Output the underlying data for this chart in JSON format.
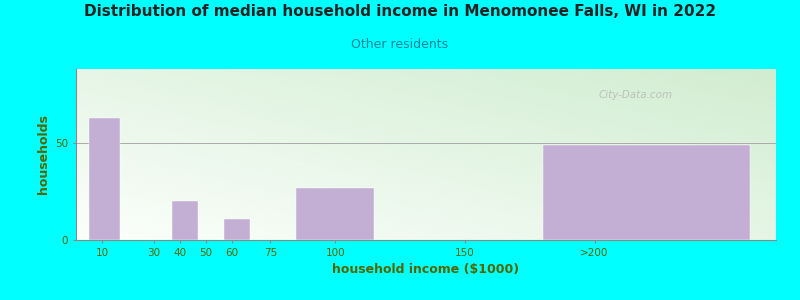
{
  "title": "Distribution of median household income in Menomonee Falls, WI in 2022",
  "subtitle": "Other residents",
  "xlabel": "household income ($1000)",
  "ylabel": "households",
  "background_color": "#00FFFF",
  "bar_color": "#c4afd4",
  "title_color": "#222222",
  "subtitle_color": "#008899",
  "axis_label_color": "#556600",
  "tick_label_color": "#556600",
  "watermark": "City-Data.com",
  "xtick_labels": [
    "10",
    "30",
    "40",
    "50",
    "60",
    "75",
    "100",
    "150",
    ">200"
  ],
  "xtick_positions": [
    10,
    30,
    40,
    50,
    60,
    75,
    100,
    150,
    200
  ],
  "bar_lefts": [
    5,
    35,
    37,
    47,
    57,
    72,
    85,
    135,
    180
  ],
  "bar_widths": [
    12,
    0,
    10,
    0,
    10,
    0,
    30,
    0,
    80
  ],
  "bar_heights": [
    63,
    0,
    20,
    0,
    11,
    0,
    27,
    0,
    49
  ],
  "xlim": [
    0,
    270
  ],
  "ylim": [
    0,
    88
  ],
  "yticks": [
    0,
    50
  ],
  "grid_y": 50,
  "grid_color": "#aaaaaa",
  "grid_lw": 0.7
}
